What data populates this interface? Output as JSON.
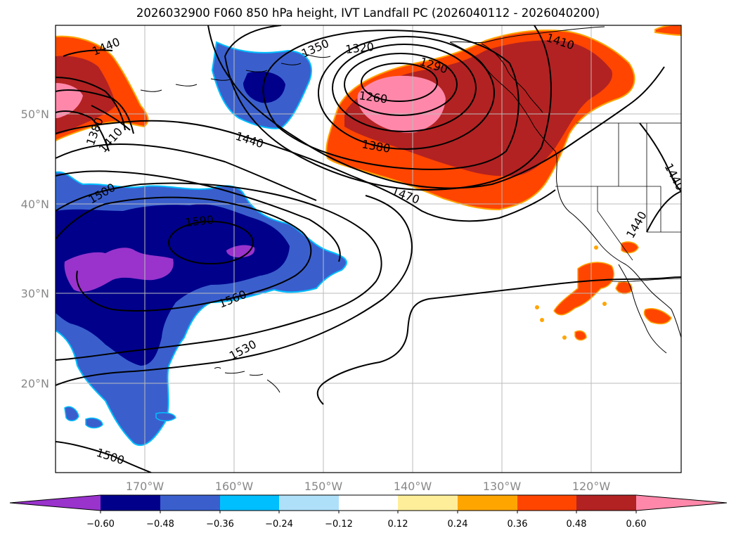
{
  "title": "2026032900 F060 850 hPa height, IVT Landfall PC (2026040112 - 2026040200)",
  "axes": {
    "lat_labels": [
      "50°N",
      "40°N",
      "30°N",
      "20°N"
    ],
    "lon_labels": [
      "170°W",
      "160°W",
      "150°W",
      "140°W",
      "130°W",
      "120°W"
    ]
  },
  "contour_labels": [
    "1440",
    "1350",
    "1320",
    "1290",
    "1260",
    "1410",
    "1380",
    "1410",
    "1440",
    "1380",
    "1470",
    "1500",
    "1590",
    "1560",
    "1530",
    "1500",
    "1440",
    "1440"
  ],
  "colorbar": {
    "ticks": [
      "−0.60",
      "−0.48",
      "−0.36",
      "−0.24",
      "−0.12",
      "0.12",
      "0.24",
      "0.36",
      "0.48",
      "0.60"
    ],
    "colors": [
      "#9933cc",
      "#00008b",
      "#3a5fcd",
      "#00bfff",
      "#afe0fa",
      "#ffffff",
      "#ffee99",
      "#ffa500",
      "#ff4500",
      "#b22222",
      "#ff88aa"
    ]
  }
}
